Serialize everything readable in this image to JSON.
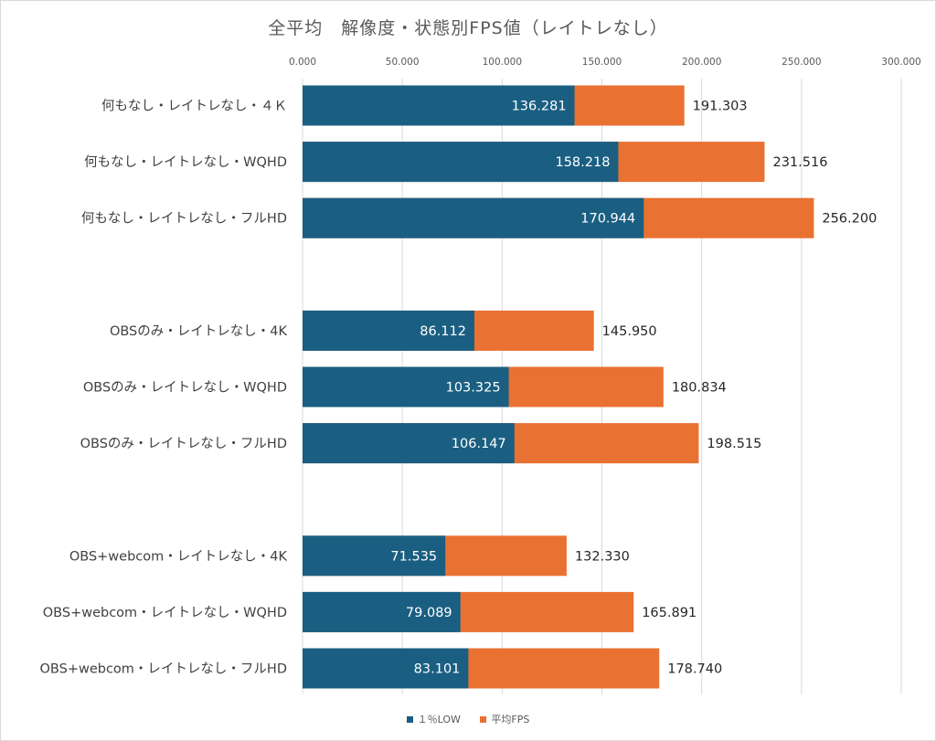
{
  "chart_data": {
    "type": "bar",
    "orientation": "horizontal",
    "stacked": "overlap",
    "title": "全平均　解像度・状態別FPS値（レイトレなし）",
    "xlim": [
      0,
      300
    ],
    "x_ticks": [
      "0.000",
      "50.000",
      "100.000",
      "150.000",
      "200.000",
      "250.000",
      "300.000"
    ],
    "grid": "vertical",
    "legend_position": "bottom",
    "groups": [
      {
        "categories": [
          "何もなし・レイトレなし・４Ｋ",
          "何もなし・レイトレなし・WQHD",
          "何もなし・レイトレなし・フルHD"
        ],
        "low": [
          136.281,
          158.218,
          170.944
        ],
        "avg": [
          191.303,
          231.516,
          256.2
        ]
      },
      {
        "categories": [
          "OBSのみ・レイトレなし・4K",
          "OBSのみ・レイトレなし・WQHD",
          "OBSのみ・レイトレなし・フルHD"
        ],
        "low": [
          86.112,
          103.325,
          106.147
        ],
        "avg": [
          145.95,
          180.834,
          198.515
        ]
      },
      {
        "categories": [
          "OBS+webcom・レイトレなし・4K",
          "OBS+webcom・レイトレなし・WQHD",
          "OBS+webcom・レイトレなし・フルHD"
        ],
        "low": [
          71.535,
          79.089,
          83.101
        ],
        "avg": [
          132.33,
          165.891,
          178.74
        ]
      }
    ],
    "series": [
      {
        "name": "１％LOW",
        "color": "#1a5f82"
      },
      {
        "name": "平均FPS",
        "color": "#e97132"
      }
    ]
  }
}
